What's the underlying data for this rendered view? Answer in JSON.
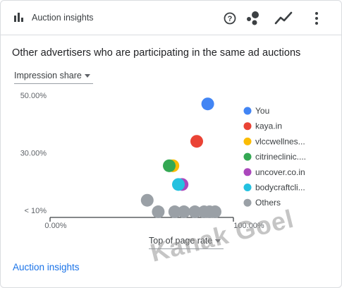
{
  "header": {
    "title": "Auction insights",
    "icons": [
      "bar-chart-icon",
      "help-icon",
      "scatter-icon",
      "trend-icon",
      "more-vert-icon"
    ]
  },
  "subtitle": "Other advertisers who are participating in the same ad auctions",
  "y_selector": "Impression share",
  "x_selector": "Top of page rate",
  "footer_link": "Auction insights",
  "watermark": "Kanak Goel",
  "chart_data": {
    "type": "scatter",
    "xlabel": "Top of page rate",
    "ylabel": "Impression share",
    "xlim": [
      0,
      100
    ],
    "ylim": [
      10,
      50
    ],
    "x_ticks": [
      {
        "v": 0,
        "label": "0.00%"
      },
      {
        "v": 100,
        "label": "100.00%"
      }
    ],
    "y_ticks": [
      {
        "v": 10,
        "label": "< 10%"
      },
      {
        "v": 30,
        "label": "30.00%"
      },
      {
        "v": 50,
        "label": "50.00%"
      }
    ],
    "legend_position": "right",
    "series": [
      {
        "name": "You",
        "color": "#4285f4",
        "points": [
          [
            86,
            47
          ]
        ]
      },
      {
        "name": "kaya.in",
        "color": "#ea4335",
        "points": [
          [
            80,
            34
          ]
        ]
      },
      {
        "name": "vlccwellnes...",
        "color": "#fbbc04",
        "points": [
          [
            67,
            25.5
          ]
        ]
      },
      {
        "name": "citrineclinic....",
        "color": "#34a853",
        "points": [
          [
            65,
            25.5
          ]
        ]
      },
      {
        "name": "uncover.co.in",
        "color": "#ab47bc",
        "points": [
          [
            72,
            19
          ]
        ]
      },
      {
        "name": "bodycraftcli...",
        "color": "#24c1e0",
        "points": [
          [
            70,
            19
          ]
        ]
      },
      {
        "name": "Others",
        "color": "#9aa0a6",
        "points": [
          [
            53,
            13.5
          ],
          [
            59,
            9.5
          ],
          [
            68,
            9.5
          ],
          [
            73,
            9.5
          ],
          [
            79,
            9.5
          ],
          [
            84,
            9.5
          ],
          [
            87,
            9.5
          ],
          [
            90,
            9.5
          ]
        ]
      }
    ]
  }
}
